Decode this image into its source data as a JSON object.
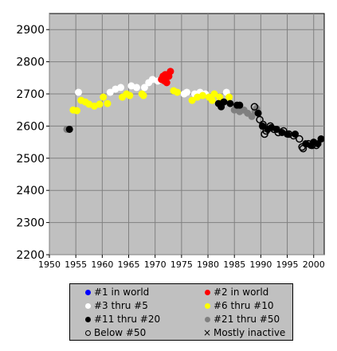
{
  "chart_data": {
    "type": "scatter",
    "title": "",
    "xlabel": "",
    "ylabel": "",
    "xlim": [
      1950,
      2002
    ],
    "ylim": [
      2200,
      2950
    ],
    "grid": true,
    "x_ticks": [
      "1950",
      "1955",
      "1960",
      "1965",
      "1970",
      "1975",
      "1980",
      "1985",
      "1990",
      "1995",
      "2000"
    ],
    "y_ticks": [
      "2200",
      "2300",
      "2400",
      "2500",
      "2600",
      "2700",
      "2800",
      "2900"
    ],
    "legend_position": "bottom",
    "series": [
      {
        "name": "#1 in world",
        "color": "#0000ff",
        "marker": "filled",
        "points": []
      },
      {
        "name": "#2 in world",
        "color": "#ff0000",
        "marker": "filled",
        "points": [
          [
            1971.2,
            2745
          ],
          [
            1971.5,
            2755
          ],
          [
            1971.8,
            2740
          ],
          [
            1972.0,
            2750
          ],
          [
            1972.3,
            2760
          ],
          [
            1972.6,
            2755
          ],
          [
            1972.9,
            2770
          ],
          [
            1972.2,
            2735
          ],
          [
            1971.9,
            2760
          ]
        ]
      },
      {
        "name": "#3 thru #5",
        "color": "#ffffff",
        "marker": "filled",
        "points": [
          [
            1955.5,
            2705
          ],
          [
            1961.5,
            2705
          ],
          [
            1962.5,
            2715
          ],
          [
            1963.5,
            2720
          ],
          [
            1965.5,
            2725
          ],
          [
            1966.5,
            2720
          ],
          [
            1968.0,
            2720
          ],
          [
            1968.8,
            2735
          ],
          [
            1969.5,
            2745
          ],
          [
            1970.5,
            2740
          ],
          [
            1975.5,
            2700
          ],
          [
            1976.0,
            2705
          ],
          [
            1977.5,
            2700
          ],
          [
            1978.5,
            2705
          ],
          [
            1979.5,
            2700
          ],
          [
            1983.5,
            2705
          ]
        ]
      },
      {
        "name": "#6 thru #10",
        "color": "#ffff00",
        "marker": "filled",
        "points": [
          [
            1954.5,
            2650
          ],
          [
            1955.2,
            2648
          ],
          [
            1956.0,
            2680
          ],
          [
            1956.8,
            2675
          ],
          [
            1957.5,
            2668
          ],
          [
            1958.5,
            2662
          ],
          [
            1959.5,
            2668
          ],
          [
            1960.2,
            2690
          ],
          [
            1961.0,
            2670
          ],
          [
            1963.8,
            2690
          ],
          [
            1964.6,
            2700
          ],
          [
            1965.2,
            2695
          ],
          [
            1967.5,
            2700
          ],
          [
            1967.8,
            2695
          ],
          [
            1973.5,
            2710
          ],
          [
            1974.2,
            2705
          ],
          [
            1977.0,
            2680
          ],
          [
            1978.0,
            2690
          ],
          [
            1979.0,
            2695
          ],
          [
            1980.2,
            2690
          ],
          [
            1980.8,
            2680
          ],
          [
            1981.2,
            2700
          ],
          [
            1982.2,
            2690
          ],
          [
            1984.0,
            2690
          ]
        ]
      },
      {
        "name": "#11 thru #20",
        "color": "#000000",
        "marker": "filled",
        "points": [
          [
            1953.8,
            2590
          ],
          [
            1982.0,
            2670
          ],
          [
            1982.5,
            2660
          ],
          [
            1983.0,
            2675
          ],
          [
            1984.2,
            2670
          ],
          [
            1985.5,
            2665
          ],
          [
            1986.0,
            2665
          ],
          [
            1989.5,
            2640
          ],
          [
            1990.3,
            2600
          ],
          [
            1991.3,
            2590
          ],
          [
            1992.0,
            2595
          ],
          [
            1993.0,
            2590
          ],
          [
            1994.0,
            2580
          ],
          [
            1995.0,
            2575
          ],
          [
            1996.5,
            2575
          ],
          [
            1998.5,
            2545
          ],
          [
            1999.5,
            2540
          ],
          [
            2000.0,
            2550
          ],
          [
            2000.8,
            2545
          ],
          [
            2001.4,
            2560
          ]
        ]
      },
      {
        "name": "#21 thru #50",
        "color": "#808080",
        "marker": "filled",
        "points": [
          [
            1953.3,
            2590
          ],
          [
            1985.0,
            2650
          ],
          [
            1986.0,
            2645
          ],
          [
            1986.8,
            2650
          ],
          [
            1987.5,
            2640
          ],
          [
            1988.3,
            2630
          ],
          [
            1988.9,
            2645
          ],
          [
            1989.2,
            2655
          ]
        ]
      },
      {
        "name": "Below #50",
        "color": "#000000",
        "marker": "hollow",
        "points": [
          [
            1988.8,
            2660
          ],
          [
            1989.8,
            2620
          ],
          [
            1990.4,
            2605
          ],
          [
            1990.7,
            2575
          ],
          [
            1991.0,
            2585
          ],
          [
            1991.8,
            2600
          ],
          [
            1992.5,
            2590
          ],
          [
            1993.3,
            2580
          ],
          [
            1994.3,
            2585
          ],
          [
            1995.3,
            2575
          ],
          [
            1996.2,
            2570
          ],
          [
            1997.3,
            2560
          ],
          [
            1997.8,
            2535
          ],
          [
            1998.0,
            2530
          ],
          [
            1999.0,
            2545
          ],
          [
            1999.7,
            2540
          ],
          [
            2000.5,
            2540
          ]
        ]
      },
      {
        "name": "Mostly inactive",
        "color": "#000000",
        "marker": "x",
        "points": []
      }
    ]
  }
}
